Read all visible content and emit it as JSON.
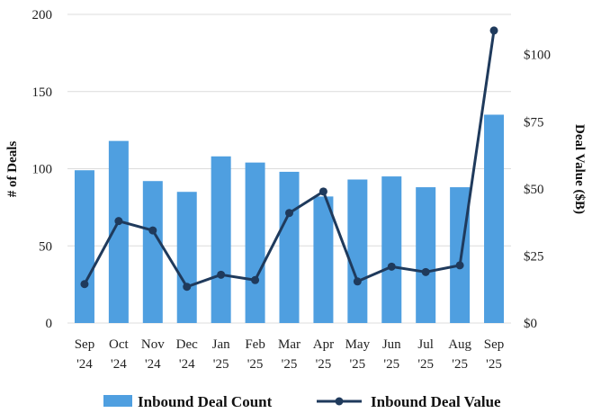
{
  "chart_data": {
    "type": "bar+line",
    "categories": [
      [
        "Sep",
        "'24"
      ],
      [
        "Oct",
        "'24"
      ],
      [
        "Nov",
        "'24"
      ],
      [
        "Dec",
        "'24"
      ],
      [
        "Jan",
        "'25"
      ],
      [
        "Feb",
        "'25"
      ],
      [
        "Mar",
        "'25"
      ],
      [
        "Apr",
        "'25"
      ],
      [
        "May",
        "'25"
      ],
      [
        "Jun",
        "'25"
      ],
      [
        "Jul",
        "'25"
      ],
      [
        "Aug",
        "'25"
      ],
      [
        "Sep",
        "'25"
      ]
    ],
    "series": [
      {
        "name": "Inbound Deal Count",
        "type": "bar",
        "axis": "left",
        "color": "#4f9fe0",
        "values": [
          99,
          118,
          92,
          85,
          108,
          104,
          98,
          82,
          93,
          95,
          88,
          88,
          135
        ]
      },
      {
        "name": "Inbound Deal Value",
        "type": "line",
        "axis": "right",
        "color": "#1f3a5c",
        "values": [
          14.5,
          38,
          34.5,
          13.5,
          18,
          16,
          41,
          49,
          15.5,
          21,
          19,
          21.5,
          109
        ]
      }
    ],
    "y_left": {
      "label": "# of Deals",
      "range": [
        0,
        200
      ],
      "ticks": [
        0,
        50,
        100,
        150,
        200
      ]
    },
    "y_right": {
      "label": "Deal Value ($B)",
      "range": [
        0,
        115
      ],
      "ticks": [
        0,
        25,
        50,
        75,
        100
      ],
      "tick_labels": [
        "$0",
        "$25",
        "$50",
        "$75",
        "$100"
      ]
    },
    "grid": true,
    "legend_position": "bottom"
  }
}
